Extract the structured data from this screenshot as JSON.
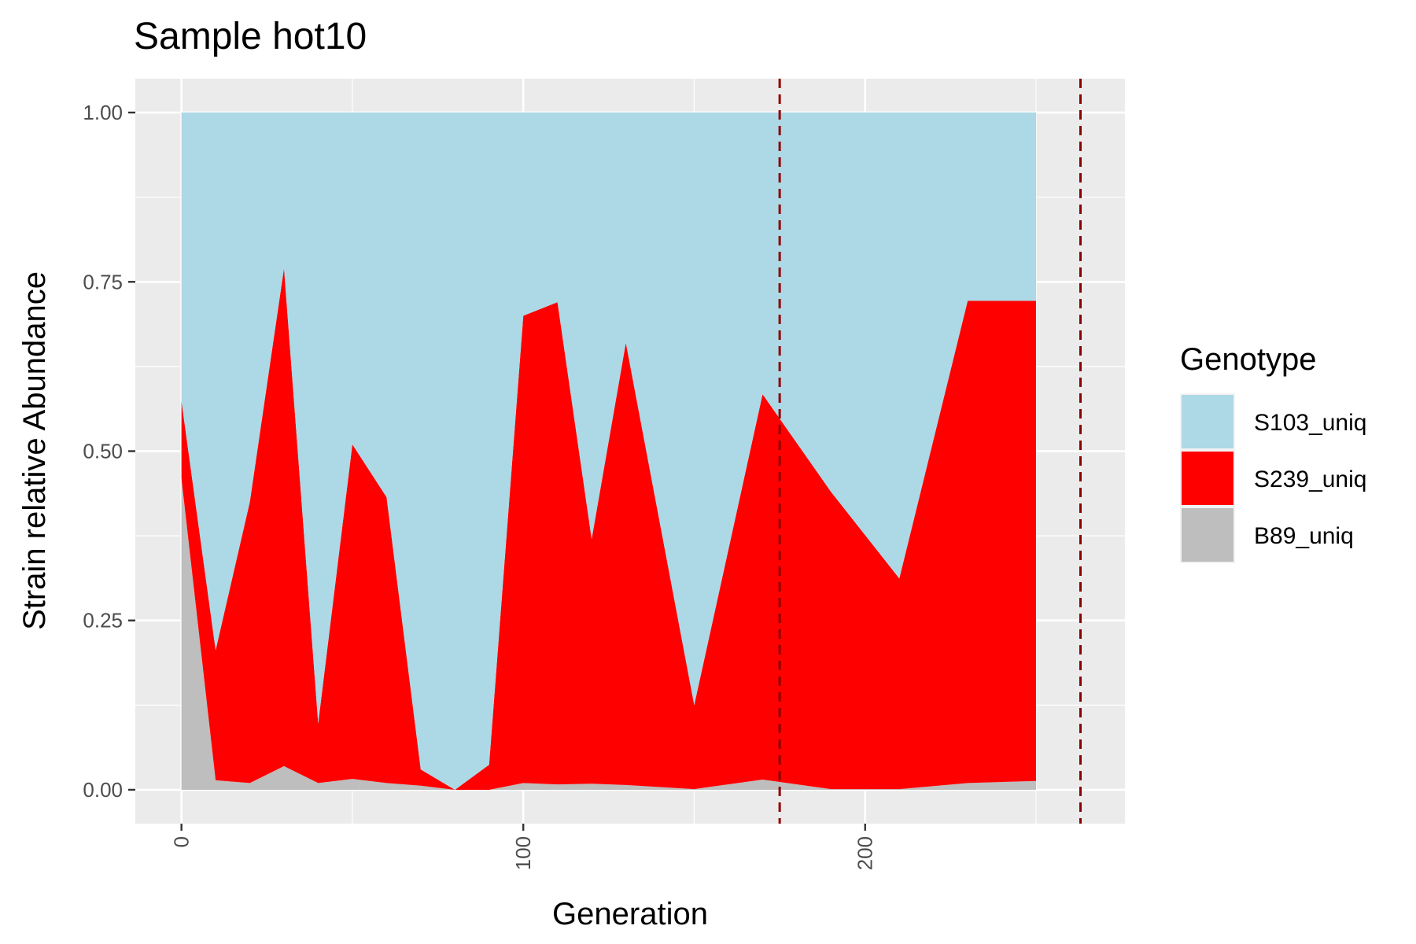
{
  "chart_data": {
    "type": "area",
    "title": "Sample hot10",
    "xlabel": "Generation",
    "ylabel": "Strain relative Abundance",
    "xlim": [
      -13.5,
      276
    ],
    "ylim": [
      -0.05,
      1.05
    ],
    "x_ticks": [
      0,
      100,
      200
    ],
    "x_tick_labels": [
      "0",
      "100",
      "200"
    ],
    "y_ticks": [
      0,
      0.25,
      0.5,
      0.75,
      1.0
    ],
    "y_tick_labels": [
      "0.00",
      "0.25",
      "0.50",
      "0.75",
      "1.00"
    ],
    "grid": true,
    "stacked": true,
    "legend": {
      "title": "Genotype",
      "position": "right",
      "entries": [
        "S103_uniq",
        "S239_uniq",
        "B89_uniq"
      ]
    },
    "x": [
      0,
      10,
      20,
      30,
      40,
      50,
      60,
      70,
      80,
      90,
      100,
      110,
      120,
      130,
      150,
      170,
      190,
      210,
      230,
      250
    ],
    "series": [
      {
        "name": "B89_uniq",
        "color": "#bebebe",
        "values": [
          0.46,
          0.014,
          0.01,
          0.035,
          0.01,
          0.016,
          0.01,
          0.006,
          0.0,
          0.0,
          0.01,
          0.008,
          0.009,
          0.007,
          0.001,
          0.015,
          0.001,
          0.001,
          0.01,
          0.013
        ]
      },
      {
        "name": "S239_uniq",
        "color": "#ff0000",
        "values": [
          0.114,
          0.192,
          0.415,
          0.735,
          0.088,
          0.494,
          0.422,
          0.024,
          0.0,
          0.037,
          0.69,
          0.712,
          0.361,
          0.653,
          0.124,
          0.569,
          0.439,
          0.311,
          0.712,
          0.709
        ]
      },
      {
        "name": "S103_uniq",
        "color": "#add8e6",
        "values": [
          0.426,
          0.794,
          0.575,
          0.23,
          0.902,
          0.49,
          0.568,
          0.97,
          1.0,
          0.963,
          0.3,
          0.28,
          0.63,
          0.34,
          0.875,
          0.416,
          0.56,
          0.688,
          0.278,
          0.278
        ]
      }
    ],
    "vlines": [
      {
        "x": 175,
        "color": "#8b0000",
        "linetype": "dashed"
      },
      {
        "x": 263,
        "color": "#8b0000",
        "linetype": "dashed"
      }
    ]
  }
}
